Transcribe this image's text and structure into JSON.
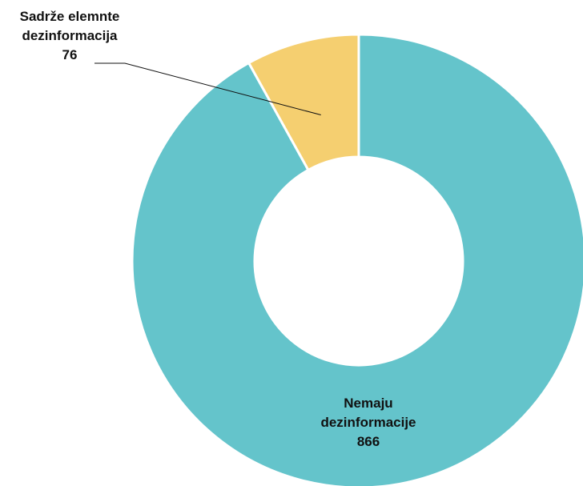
{
  "chart_data": {
    "type": "pie",
    "variant": "donut",
    "categories": [
      "Sadrže elemnte dezinformacija",
      "Nemaju dezinformacije"
    ],
    "values": [
      76,
      866
    ],
    "colors": [
      "#f5cf70",
      "#64c4cb"
    ],
    "labels": [
      {
        "lines": [
          "Sadrže elemnte",
          "dezinformacija"
        ],
        "value": "76",
        "placement": "outside-left-with-leader-line"
      },
      {
        "lines": [
          "Nemaju",
          "dezinformacije"
        ],
        "value": "866",
        "placement": "inside-bottom"
      }
    ],
    "start_angle": "top",
    "direction": "counter-clockwise for first slice",
    "legend": "none"
  }
}
